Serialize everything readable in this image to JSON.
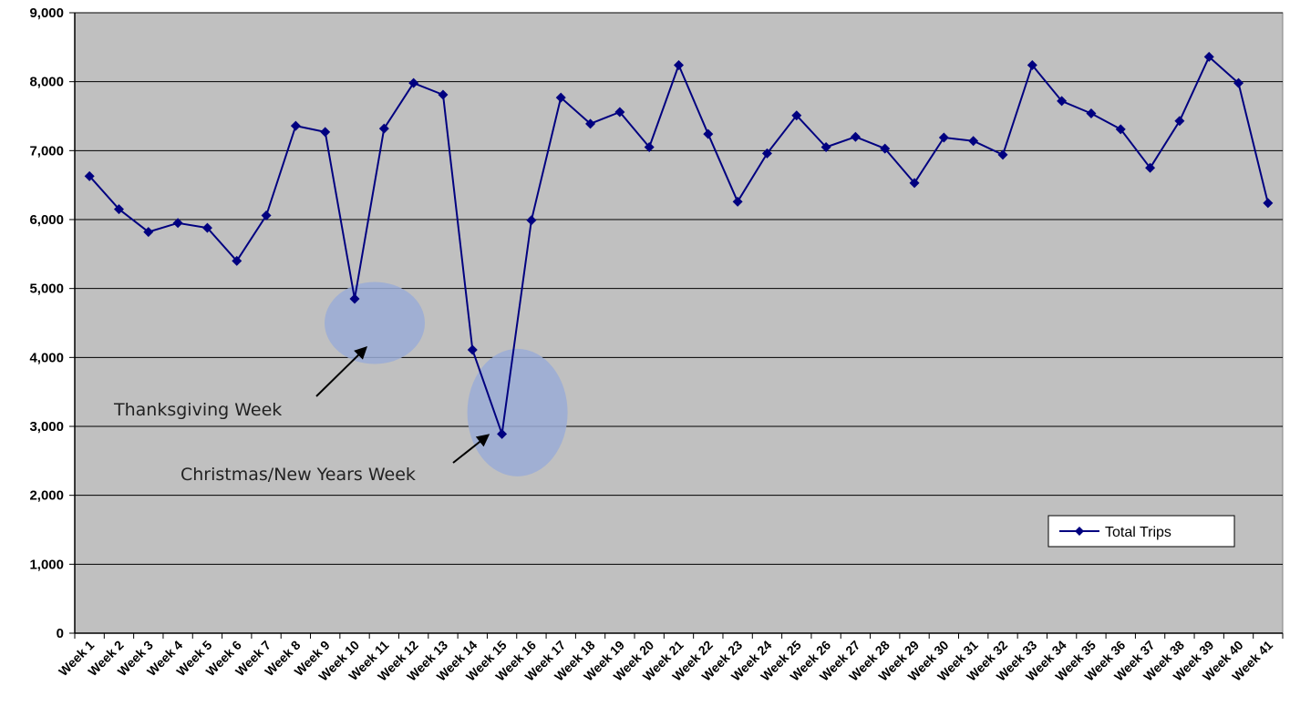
{
  "chart_data": {
    "type": "line",
    "title": "",
    "xlabel": "",
    "ylabel": "",
    "ylim": [
      0,
      9000
    ],
    "yticks": [
      "0",
      "1,000",
      "2,000",
      "3,000",
      "4,000",
      "5,000",
      "6,000",
      "7,000",
      "8,000",
      "9,000"
    ],
    "ytick_values": [
      0,
      1000,
      2000,
      3000,
      4000,
      5000,
      6000,
      7000,
      8000,
      9000
    ],
    "grid": true,
    "legend_position": "bottom-right",
    "categories": [
      "Week 1",
      "Week 2",
      "Week 3",
      "Week 4",
      "Week 5",
      "Week 6",
      "Week 7",
      "Week 8",
      "Week 9",
      "Week 10",
      "Week 11",
      "Week 12",
      "Week 13",
      "Week 14",
      "Week 15",
      "Week 16",
      "Week 17",
      "Week 18",
      "Week 19",
      "Week 20",
      "Week 21",
      "Week 22",
      "Week 23",
      "Week 24",
      "Week 25",
      "Week 26",
      "Week 27",
      "Week 28",
      "Week 29",
      "Week 30",
      "Week 31",
      "Week 32",
      "Week 33",
      "Week 34",
      "Week 35",
      "Week 36",
      "Week 37",
      "Week 38",
      "Week 39",
      "Week 40",
      "Week 41"
    ],
    "series": [
      {
        "name": "Total Trips",
        "color": "#000080",
        "values": [
          6630,
          6150,
          5820,
          5950,
          5880,
          5400,
          6060,
          7360,
          7270,
          4850,
          7320,
          7980,
          7810,
          4110,
          2890,
          5990,
          7770,
          7390,
          7560,
          7050,
          8240,
          7240,
          6260,
          6960,
          7510,
          7050,
          7200,
          7030,
          6530,
          7190,
          7140,
          6940,
          8240,
          7720,
          7540,
          7310,
          6750,
          7430,
          8360,
          7980,
          6240
        ]
      }
    ],
    "annotations": [
      {
        "text": "Thanksgiving Week",
        "target_category": "Week 10",
        "target_value": 4500
      },
      {
        "text": "Christmas/New Years Week",
        "target_category": "Week 15",
        "target_value": 3200
      }
    ],
    "plot_background": "#c0c0c0",
    "highlight_color": "#9aabd6"
  }
}
